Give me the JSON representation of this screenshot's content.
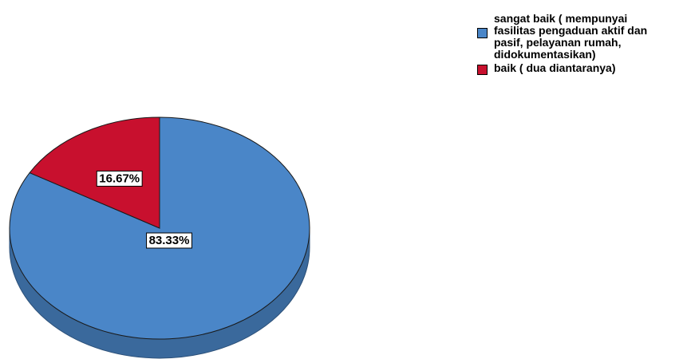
{
  "chart_data": {
    "type": "pie",
    "title": "",
    "slices": [
      {
        "label": "sangat baik ( mempunyai\nfasilitas pengaduan aktif dan\npasif, pelayanan rumah,\ndidokumentasikan)",
        "value": 83.33,
        "value_label": "83.33%",
        "color": "#4a86c8"
      },
      {
        "label": "baik ( dua diantaranya)",
        "value": 16.67,
        "value_label": "16.67%",
        "color": "#c8102e"
      }
    ],
    "legend_position": "top-right",
    "three_d": true
  }
}
